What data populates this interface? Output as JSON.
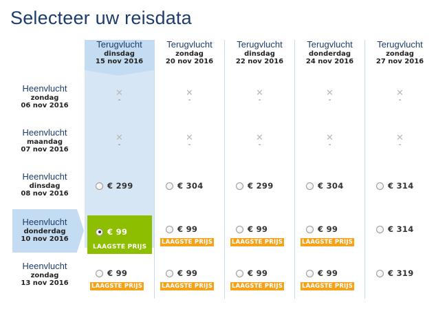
{
  "page": {
    "title": "Selecteer uw reisdata"
  },
  "columns": [
    {
      "label": "Terugvlucht",
      "day": "dinsdag",
      "date": "15 nov 2016",
      "selected": true
    },
    {
      "label": "Terugvlucht",
      "day": "zondag",
      "date": "20 nov 2016",
      "selected": false
    },
    {
      "label": "Terugvlucht",
      "day": "dinsdag",
      "date": "22 nov 2016",
      "selected": false
    },
    {
      "label": "Terugvlucht",
      "day": "donderdag",
      "date": "24 nov 2016",
      "selected": false
    },
    {
      "label": "Terugvlucht",
      "day": "zondag",
      "date": "27 nov 2016",
      "selected": false
    }
  ],
  "rows": [
    {
      "label": "Heenvlucht",
      "day": "zondag",
      "date": "06 nov 2016",
      "selected": false,
      "cells": [
        {
          "available": false,
          "text": "-"
        },
        {
          "available": false,
          "text": "-"
        },
        {
          "available": false,
          "text": "-"
        },
        {
          "available": false,
          "text": "-"
        },
        {
          "available": false,
          "text": "-"
        }
      ]
    },
    {
      "label": "Heenvlucht",
      "day": "maandag",
      "date": "07 nov 2016",
      "selected": false,
      "cells": [
        {
          "available": false,
          "text": "-"
        },
        {
          "available": false,
          "text": "-"
        },
        {
          "available": false,
          "text": "-"
        },
        {
          "available": false,
          "text": "-"
        },
        {
          "available": false,
          "text": "-"
        }
      ]
    },
    {
      "label": "Heenvlucht",
      "day": "dinsdag",
      "date": "08 nov 2016",
      "selected": false,
      "cells": [
        {
          "available": true,
          "price": "€ 299",
          "lowest": false,
          "checked": false
        },
        {
          "available": true,
          "price": "€ 304",
          "lowest": false,
          "checked": false
        },
        {
          "available": true,
          "price": "€ 299",
          "lowest": false,
          "checked": false
        },
        {
          "available": true,
          "price": "€ 304",
          "lowest": false,
          "checked": false
        },
        {
          "available": true,
          "price": "€ 314",
          "lowest": false,
          "checked": false
        }
      ]
    },
    {
      "label": "Heenvlucht",
      "day": "donderdag",
      "date": "10 nov 2016",
      "selected": true,
      "cells": [
        {
          "available": true,
          "price": "€ 99",
          "lowest": true,
          "checked": true
        },
        {
          "available": true,
          "price": "€ 99",
          "lowest": true,
          "checked": false
        },
        {
          "available": true,
          "price": "€ 99",
          "lowest": true,
          "checked": false
        },
        {
          "available": true,
          "price": "€ 99",
          "lowest": true,
          "checked": false
        },
        {
          "available": true,
          "price": "€ 314",
          "lowest": false,
          "checked": false
        }
      ]
    },
    {
      "label": "Heenvlucht",
      "day": "zondag",
      "date": "13 nov 2016",
      "selected": false,
      "cells": [
        {
          "available": true,
          "price": "€ 99",
          "lowest": true,
          "checked": false
        },
        {
          "available": true,
          "price": "€ 99",
          "lowest": true,
          "checked": false
        },
        {
          "available": true,
          "price": "€ 99",
          "lowest": true,
          "checked": false
        },
        {
          "available": true,
          "price": "€ 99",
          "lowest": true,
          "checked": false
        },
        {
          "available": true,
          "price": "€ 319",
          "lowest": false,
          "checked": false
        }
      ]
    }
  ],
  "badge_label": "LAAGSTE PRIJS",
  "na_icon": "cross-icon",
  "colors": {
    "title": "#1c3d6b",
    "selected_bg": "#d6e6f5",
    "selected_head": "#c4dcf2",
    "best_cell": "#8dbf00",
    "badge": "#f3a21a"
  }
}
